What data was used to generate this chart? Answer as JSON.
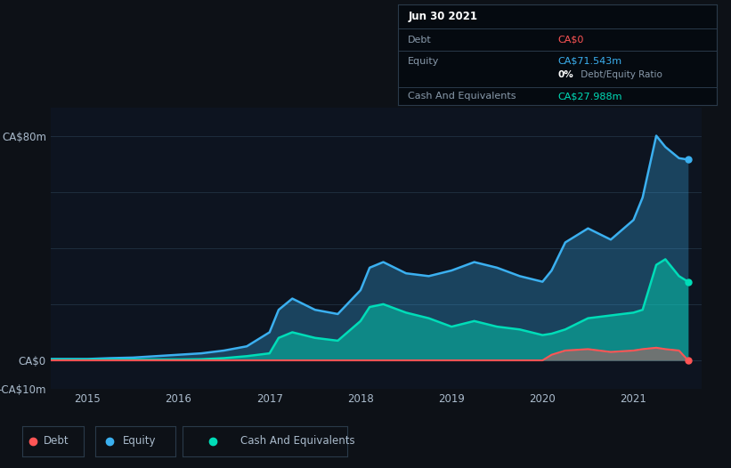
{
  "bg_color": "#0d1117",
  "plot_bg_color": "#0d1420",
  "grid_color": "#1e2d3d",
  "text_color": "#aabbcc",
  "debt_color": "#ff5555",
  "equity_color": "#3bb0f0",
  "cash_color": "#00ddb8",
  "ylim": [
    -10,
    90
  ],
  "yticks": [
    -10,
    0,
    80
  ],
  "ytick_labels": [
    "-CA$10m",
    "CA$0",
    "CA$80m"
  ],
  "xlim_start": 2014.6,
  "xlim_end": 2021.75,
  "xticks": [
    2015,
    2016,
    2017,
    2018,
    2019,
    2020,
    2021
  ],
  "tooltip_title": "Jun 30 2021",
  "tooltip_debt_label": "Debt",
  "tooltip_debt_value": "CA$0",
  "tooltip_equity_label": "Equity",
  "tooltip_equity_value": "CA$71.543m",
  "tooltip_ratio_bold": "0%",
  "tooltip_ratio_rest": " Debt/Equity Ratio",
  "tooltip_cash_label": "Cash And Equivalents",
  "tooltip_cash_value": "CA$27.988m",
  "legend_debt": "Debt",
  "legend_equity": "Equity",
  "legend_cash": "Cash And Equivalents",
  "time": [
    2014.6,
    2015.0,
    2015.25,
    2015.5,
    2015.75,
    2016.0,
    2016.25,
    2016.5,
    2016.75,
    2017.0,
    2017.1,
    2017.25,
    2017.5,
    2017.75,
    2018.0,
    2018.1,
    2018.25,
    2018.5,
    2018.75,
    2019.0,
    2019.25,
    2019.5,
    2019.75,
    2020.0,
    2020.1,
    2020.25,
    2020.5,
    2020.75,
    2021.0,
    2021.1,
    2021.25,
    2021.35,
    2021.5,
    2021.6
  ],
  "equity": [
    0.5,
    0.5,
    0.8,
    1.0,
    1.5,
    2.0,
    2.5,
    3.5,
    5.0,
    10.0,
    18.0,
    22.0,
    18.0,
    16.5,
    25.0,
    33.0,
    35.0,
    31.0,
    30.0,
    32.0,
    35.0,
    33.0,
    30.0,
    28.0,
    32.0,
    42.0,
    47.0,
    43.0,
    50.0,
    58.0,
    80.0,
    76.0,
    72.0,
    71.5
  ],
  "debt": [
    0,
    0,
    0,
    0,
    0,
    0,
    0,
    0,
    0,
    0,
    0,
    0,
    0,
    0,
    0,
    0,
    0,
    0,
    0,
    0,
    0,
    0,
    0,
    0,
    2.0,
    3.5,
    4.0,
    3.0,
    3.5,
    4.0,
    4.5,
    4.0,
    3.5,
    0
  ],
  "cash": [
    0.3,
    0.3,
    0.3,
    0.3,
    0.3,
    0.3,
    0.4,
    0.8,
    1.5,
    2.5,
    8.0,
    10.0,
    8.0,
    7.0,
    14.0,
    19.0,
    20.0,
    17.0,
    15.0,
    12.0,
    14.0,
    12.0,
    11.0,
    9.0,
    9.5,
    11.0,
    15.0,
    16.0,
    17.0,
    18.0,
    34.0,
    36.0,
    30.0,
    27.988
  ]
}
